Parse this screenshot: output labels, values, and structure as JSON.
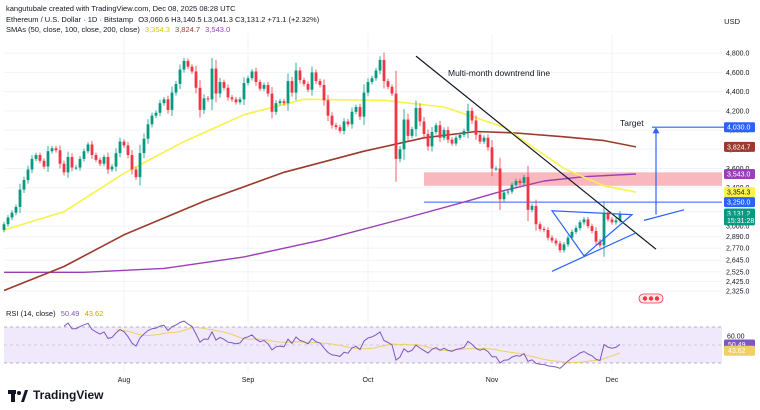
{
  "header": {
    "created_by": "kangutubale created with TradingView.com, Dec 08, 2025 08:28 UTC",
    "symbol": "Ethereum / U.S. Dollar · 1D · Bitstamp",
    "ohlc": "O3,060.6 H3,140.5 L3,041.3 C3,131.2 +71.1 (+2.32%)",
    "sma_label": "SMAs (50, close, 100, close, 200, close)",
    "sma50_value": "3,354.3",
    "sma100_value": "3,824.7",
    "sma200_value": "3,543.0",
    "rsi_label": "RSI (14, close)",
    "rsi_value": "50.49",
    "rsi_ma_value": "43.62",
    "currency": "USD"
  },
  "brand": {
    "name": "TradingView",
    "logo_icon": "tradingview-logo-icon"
  },
  "colors": {
    "up": "#089981",
    "down": "#f23645",
    "sma50": "#f7f34a",
    "sma100": "#9c3a2c",
    "sma200": "#9c3fb7",
    "rsi": "#7e57c2",
    "rsi_ma": "#f0d060",
    "blue": "#2962ff",
    "zone": "#f5a0a8"
  },
  "chart_data": {
    "type": "candlestick",
    "title": "Ethereum / U.S. Dollar · 1D · Bitstamp",
    "ylabel": "USD",
    "ylim": [
      2200,
      5000
    ],
    "y_ticks": [
      2325,
      2425,
      2525,
      2645,
      2770,
      2890,
      3000,
      3150,
      3400,
      3600,
      3800,
      4000,
      4200,
      4400,
      4600,
      4800
    ],
    "y_tick_labels": [
      "2,325.0",
      "2,425.0",
      "2,525.0",
      "2,645.0",
      "2,770.0",
      "2,890.0",
      "3,000.0",
      "3,150.0",
      "3,400.0",
      "3,600.0",
      "3,800.0",
      "4,000.0",
      "4,200.0",
      "4,400.0",
      "4,600.0",
      "4,800.0"
    ],
    "x_labels": [
      {
        "label": "Aug",
        "bar": 30
      },
      {
        "label": "Sep",
        "bar": 61
      },
      {
        "label": "Oct",
        "bar": 91
      },
      {
        "label": "Nov",
        "bar": 122
      },
      {
        "label": "Dec",
        "bar": 152
      }
    ],
    "close": [
      3020,
      3090,
      3140,
      3200,
      3380,
      3480,
      3590,
      3700,
      3740,
      3680,
      3620,
      3780,
      3810,
      3790,
      3650,
      3560,
      3720,
      3610,
      3610,
      3700,
      3780,
      3850,
      3740,
      3690,
      3650,
      3720,
      3590,
      3620,
      3760,
      3880,
      3840,
      3740,
      3590,
      3510,
      3760,
      3910,
      4060,
      4150,
      4180,
      4280,
      4320,
      4210,
      4390,
      4480,
      4630,
      4720,
      4660,
      4610,
      4440,
      4210,
      4330,
      4320,
      4640,
      4380,
      4500,
      4440,
      4340,
      4320,
      4290,
      4320,
      4490,
      4540,
      4610,
      4500,
      4430,
      4470,
      4380,
      4190,
      4280,
      4300,
      4280,
      4510,
      4390,
      4620,
      4520,
      4480,
      4420,
      4600,
      4510,
      4470,
      4310,
      4150,
      4050,
      4030,
      3990,
      4090,
      4060,
      4190,
      4240,
      4140,
      4390,
      4500,
      4540,
      4620,
      4730,
      4510,
      4450,
      4380,
      3700,
      3800,
      4110,
      3940,
      4010,
      4230,
      4090,
      3960,
      3830,
      3980,
      4050,
      3920,
      4000,
      3900,
      3860,
      3920,
      3950,
      3990,
      4200,
      4100,
      3950,
      3880,
      3920,
      3820,
      3600,
      3600,
      3280,
      3350,
      3360,
      3430,
      3470,
      3450,
      3510,
      3170,
      3210,
      3020,
      2970,
      2960,
      2880,
      2850,
      2820,
      2750,
      2810,
      2880,
      2940,
      2980,
      3040,
      3070,
      3000,
      2950,
      2840,
      2800,
      3140,
      3070,
      3040,
      3060,
      3131
    ],
    "open_rule": "each bar opens at previous close (first bar opens at 2960)",
    "sma50": {
      "name": "SMA 50",
      "value": 3354.3,
      "points": [
        [
          0,
          2960
        ],
        [
          15,
          3150
        ],
        [
          30,
          3550
        ],
        [
          45,
          3880
        ],
        [
          60,
          4160
        ],
        [
          75,
          4320
        ],
        [
          95,
          4310
        ],
        [
          110,
          4240
        ],
        [
          125,
          4030
        ],
        [
          140,
          3600
        ],
        [
          150,
          3420
        ],
        [
          158,
          3354
        ]
      ]
    },
    "sma100": {
      "name": "SMA 100",
      "value": 3824.7,
      "points": [
        [
          0,
          2330
        ],
        [
          15,
          2580
        ],
        [
          30,
          2910
        ],
        [
          50,
          3260
        ],
        [
          70,
          3560
        ],
        [
          90,
          3780
        ],
        [
          105,
          3920
        ],
        [
          118,
          3985
        ],
        [
          128,
          3970
        ],
        [
          140,
          3930
        ],
        [
          150,
          3890
        ],
        [
          158,
          3825
        ]
      ]
    },
    "sma200": {
      "name": "SMA 200",
      "value": 3543.0,
      "points": [
        [
          0,
          2520
        ],
        [
          20,
          2520
        ],
        [
          40,
          2560
        ],
        [
          60,
          2680
        ],
        [
          80,
          2860
        ],
        [
          100,
          3080
        ],
        [
          115,
          3250
        ],
        [
          125,
          3370
        ],
        [
          135,
          3470
        ],
        [
          145,
          3515
        ],
        [
          158,
          3543
        ]
      ]
    },
    "resistance_zone": {
      "low": 3420,
      "high": 3560
    },
    "support_line": 3250,
    "downtrend_line": {
      "label": "Multi-month downtrend line",
      "from": [
        103,
        4770
      ],
      "to": [
        163,
        2760
      ]
    },
    "triangle": {
      "points": [
        [
          137,
          3160
        ],
        [
          145,
          2690
        ],
        [
          157,
          3120
        ]
      ]
    },
    "lower_channel": {
      "from": [
        137,
        2530
      ],
      "to": [
        158,
        2930
      ]
    },
    "upper_channel": {
      "from": [
        160,
        3060
      ],
      "to": [
        170,
        3170
      ]
    },
    "target": {
      "label": "Target",
      "value": 4030,
      "from_bar": 163,
      "to_bar": 181
    },
    "price_badges": [
      {
        "value": 4030,
        "label": "4,030.0",
        "color": "#2962ff"
      },
      {
        "value": 3824.7,
        "label": "3,824.7",
        "color": "#9c3a2c"
      },
      {
        "value": 3543.0,
        "label": "3,543.0",
        "color": "#9c3fb7"
      },
      {
        "value": 3354.3,
        "label": "3,354.3",
        "color": "#f7f34a",
        "text_color": "#131722"
      },
      {
        "value": 3250,
        "label": "3,250.0",
        "color": "#2962ff"
      },
      {
        "value": 3131.2,
        "label": "3,131.2",
        "color": "#089981"
      },
      {
        "value": 3060,
        "label": "15:31:28",
        "color": "#089981"
      }
    ],
    "rsi": {
      "ylim": [
        20,
        80
      ],
      "y_ticks": [
        60
      ],
      "y_tick_labels": [
        "60.00"
      ],
      "band": [
        30,
        70
      ],
      "badges": [
        {
          "value": 50.49,
          "label": "50.49",
          "color": "#7e57c2"
        },
        {
          "value": 43.62,
          "label": "43.62",
          "color": "#f0d060"
        }
      ]
    }
  }
}
